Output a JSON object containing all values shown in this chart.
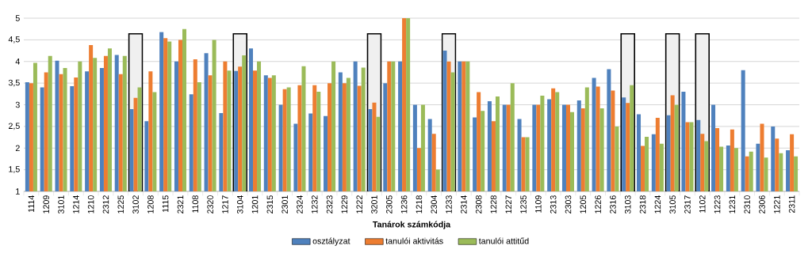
{
  "chart_data": {
    "type": "bar",
    "xlabel": "Tanárok számkódja",
    "categories": [
      "1114",
      "1209",
      "3101",
      "1214",
      "1210",
      "2312",
      "1225",
      "3102",
      "1208",
      "1115",
      "2321",
      "1108",
      "2320",
      "1217",
      "3104",
      "1201",
      "2315",
      "2301",
      "2324",
      "1232",
      "2323",
      "1229",
      "1222",
      "3201",
      "2305",
      "1236",
      "1218",
      "2304",
      "1233",
      "2314",
      "2308",
      "1228",
      "1227",
      "1235",
      "1109",
      "2313",
      "2303",
      "1205",
      "1226",
      "2316",
      "3103",
      "2318",
      "1224",
      "3105",
      "2317",
      "1102",
      "1223",
      "1231",
      "2310",
      "2306",
      "1221",
      "2311"
    ],
    "series": [
      {
        "name": "osztályzat",
        "color": "#4f81bd",
        "values": [
          3.52,
          3.4,
          4.02,
          3.43,
          3.77,
          3.85,
          4.15,
          2.9,
          2.62,
          4.68,
          4.0,
          3.24,
          4.19,
          2.81,
          3.78,
          4.3,
          3.68,
          3.0,
          2.56,
          2.8,
          2.74,
          3.75,
          4.0,
          2.9,
          3.5,
          4.0,
          3.0,
          2.67,
          4.25,
          4.0,
          2.71,
          3.08,
          3.0,
          2.67,
          3.0,
          3.13,
          3.0,
          3.1,
          3.62,
          3.82,
          3.17,
          2.78,
          2.32,
          2.76,
          3.3,
          2.65,
          3.0,
          2.06,
          3.8,
          2.1,
          2.5,
          1.95
        ]
      },
      {
        "name": "tanulói aktivitás",
        "color": "#ed7d31",
        "values": [
          3.5,
          3.75,
          3.71,
          3.63,
          4.38,
          4.13,
          3.71,
          3.16,
          3.77,
          4.54,
          4.5,
          4.05,
          3.68,
          4.0,
          3.88,
          3.79,
          3.62,
          3.36,
          3.45,
          3.45,
          3.5,
          3.5,
          3.44,
          3.05,
          4.0,
          5.0,
          2.0,
          2.33,
          4.0,
          4.0,
          3.29,
          2.62,
          3.0,
          2.25,
          3.0,
          3.38,
          3.0,
          2.92,
          3.42,
          3.33,
          3.04,
          2.05,
          2.7,
          3.22,
          2.6,
          2.33,
          2.46,
          2.43,
          1.81,
          2.56,
          2.22,
          2.32
        ]
      },
      {
        "name": "tanulói attitűd",
        "color": "#9bbb59",
        "values": [
          3.97,
          4.13,
          3.85,
          4.0,
          4.08,
          4.3,
          4.13,
          3.4,
          3.29,
          4.46,
          4.75,
          3.52,
          4.5,
          3.79,
          4.14,
          4.0,
          3.68,
          3.4,
          3.89,
          3.3,
          4.0,
          3.62,
          3.86,
          2.72,
          4.0,
          5.0,
          3.0,
          1.5,
          3.75,
          4.0,
          2.86,
          3.19,
          3.5,
          2.25,
          3.21,
          3.29,
          2.83,
          3.4,
          2.92,
          2.5,
          3.45,
          2.26,
          2.1,
          3.0,
          2.6,
          2.16,
          2.03,
          2.0,
          1.92,
          1.78,
          1.88,
          1.81
        ]
      }
    ],
    "ylim": [
      1,
      5
    ],
    "yticks": [
      1,
      {
        "value": 1.5,
        "label": "1,5"
      },
      2,
      {
        "value": 2.5,
        "label": "2,5"
      },
      3,
      {
        "value": 3.5,
        "label": "3,5"
      },
      4,
      {
        "value": 4.5,
        "label": "4,5"
      },
      5
    ],
    "grid": "y",
    "legend": "bottom",
    "bands": [
      {
        "axis": "x",
        "from": "3102",
        "to": "3102"
      },
      {
        "axis": "x",
        "from": "3104",
        "to": "3104"
      },
      {
        "axis": "x",
        "from": "3201",
        "to": "3201"
      },
      {
        "axis": "x",
        "from": "1233",
        "to": "1233"
      },
      {
        "axis": "x",
        "from": "3103",
        "to": "3103"
      },
      {
        "axis": "x",
        "from": "3105",
        "to": "3105"
      },
      {
        "axis": "x",
        "from": "1102",
        "to": "1102"
      }
    ]
  }
}
